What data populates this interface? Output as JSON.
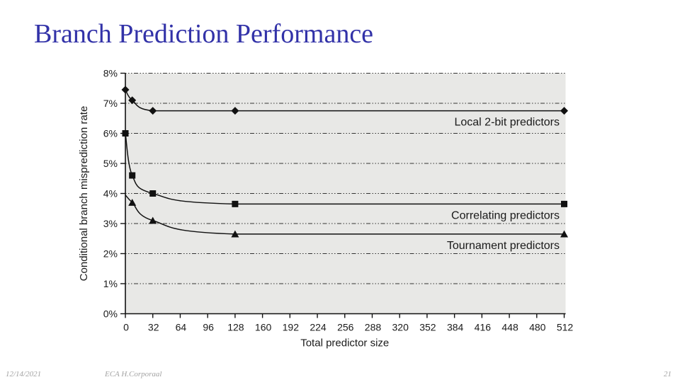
{
  "slide": {
    "title": "Branch Prediction Performance",
    "footer": {
      "date": "12/14/2021",
      "course": "ECA  H.Corporaal",
      "page": "21"
    },
    "colors": {
      "title_text": "#3232a8",
      "footer_text": "#a3a3a3",
      "plot_bg": "#e8e8e6",
      "grid_line": "#333333",
      "axis_and_series": "#111111",
      "chart_text": "#1a1a1a"
    }
  },
  "chart_data": {
    "type": "line",
    "title": "",
    "xlabel": "Total predictor size",
    "ylabel": "Conditional branch misprediction rate",
    "xlim": [
      0,
      512
    ],
    "ylim": [
      0,
      8
    ],
    "x_ticks": [
      0,
      32,
      64,
      96,
      128,
      160,
      192,
      224,
      256,
      288,
      320,
      352,
      384,
      416,
      448,
      480,
      512
    ],
    "y_ticks": [
      0,
      1,
      2,
      3,
      4,
      5,
      6,
      7,
      8
    ],
    "y_tick_labels": [
      "0%",
      "1%",
      "2%",
      "3%",
      "4%",
      "5%",
      "6%",
      "7%",
      "8%"
    ],
    "grid": "horizontal dash-dot lines at each 1%",
    "legend_position": "labels under right end of each line",
    "series": [
      {
        "name": "Local 2-bit predictors",
        "marker": "diamond",
        "points": [
          [
            0,
            7.45
          ],
          [
            8,
            7.1
          ],
          [
            32,
            6.75
          ],
          [
            128,
            6.75
          ],
          [
            512,
            6.75
          ]
        ]
      },
      {
        "name": "Correlating predictors",
        "marker": "square",
        "points": [
          [
            0,
            6.0
          ],
          [
            8,
            4.6
          ],
          [
            32,
            4.0
          ],
          [
            128,
            3.65
          ],
          [
            512,
            3.65
          ]
        ]
      },
      {
        "name": "Tournament predictors",
        "marker": "triangle",
        "lead_in": [
          0,
          3.95
        ],
        "points": [
          [
            8,
            3.7
          ],
          [
            32,
            3.1
          ],
          [
            128,
            2.65
          ],
          [
            512,
            2.65
          ]
        ]
      }
    ]
  }
}
